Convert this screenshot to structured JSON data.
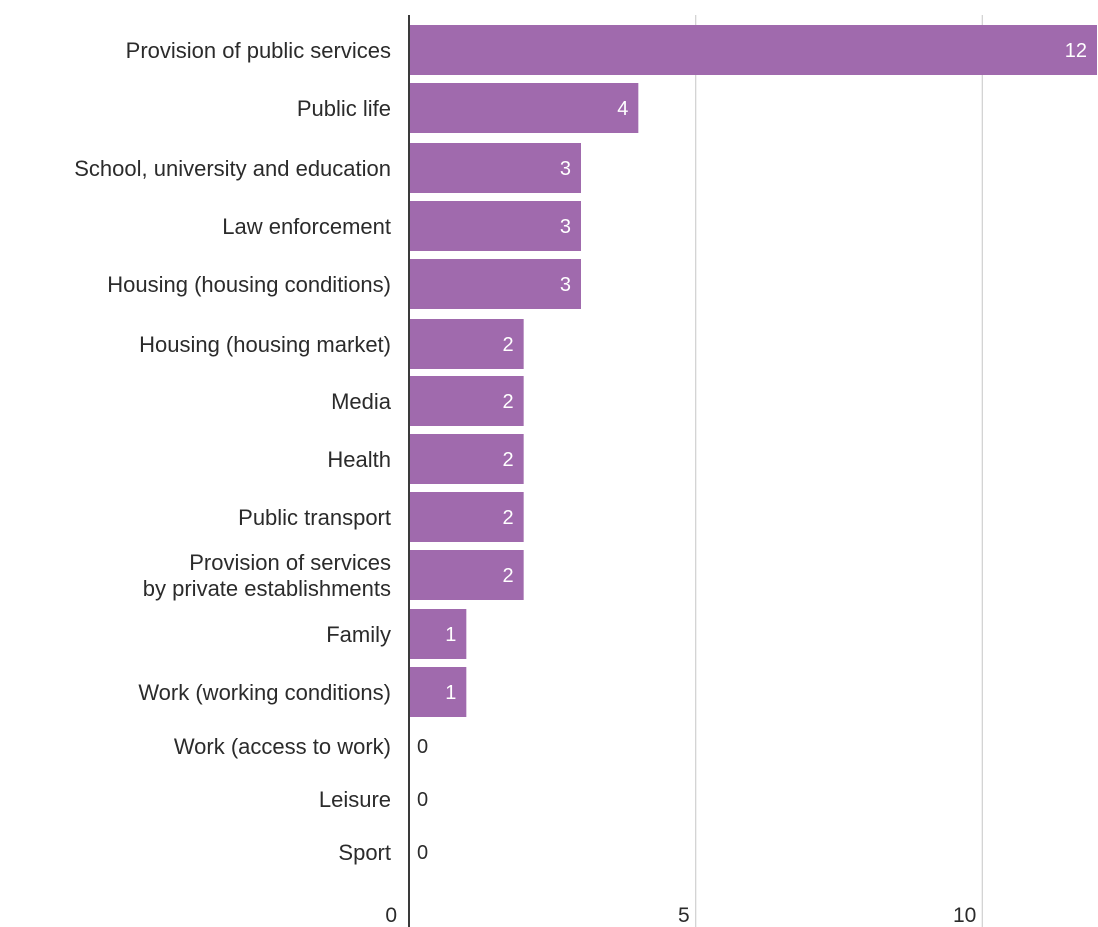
{
  "chart_data": {
    "type": "bar",
    "orientation": "horizontal",
    "categories": [
      "Provision of public services",
      "Public life",
      "School, university and education",
      "Law enforcement",
      "Housing (housing conditions)",
      "Housing (housing market)",
      "Media",
      "Health",
      "Public transport",
      "Provision of services\nby private establishments",
      "Family",
      "Work (working conditions)",
      "Work (access to work)",
      "Leisure",
      "Sport"
    ],
    "values": [
      12,
      4,
      3,
      3,
      3,
      2,
      2,
      2,
      2,
      2,
      1,
      1,
      0,
      0,
      0
    ],
    "xlim": [
      0,
      12
    ],
    "xticks": [
      0,
      5,
      10
    ],
    "grid": true,
    "bar_color": "#a06aad",
    "label_inside_color": "#ffffff",
    "label_outside_color": "#2b2b2b",
    "grid_color": "#d3d3d3",
    "axis_color": "#3a3a3a",
    "text_color": "#2b2b2b",
    "title": "",
    "xlabel": "",
    "ylabel": ""
  }
}
